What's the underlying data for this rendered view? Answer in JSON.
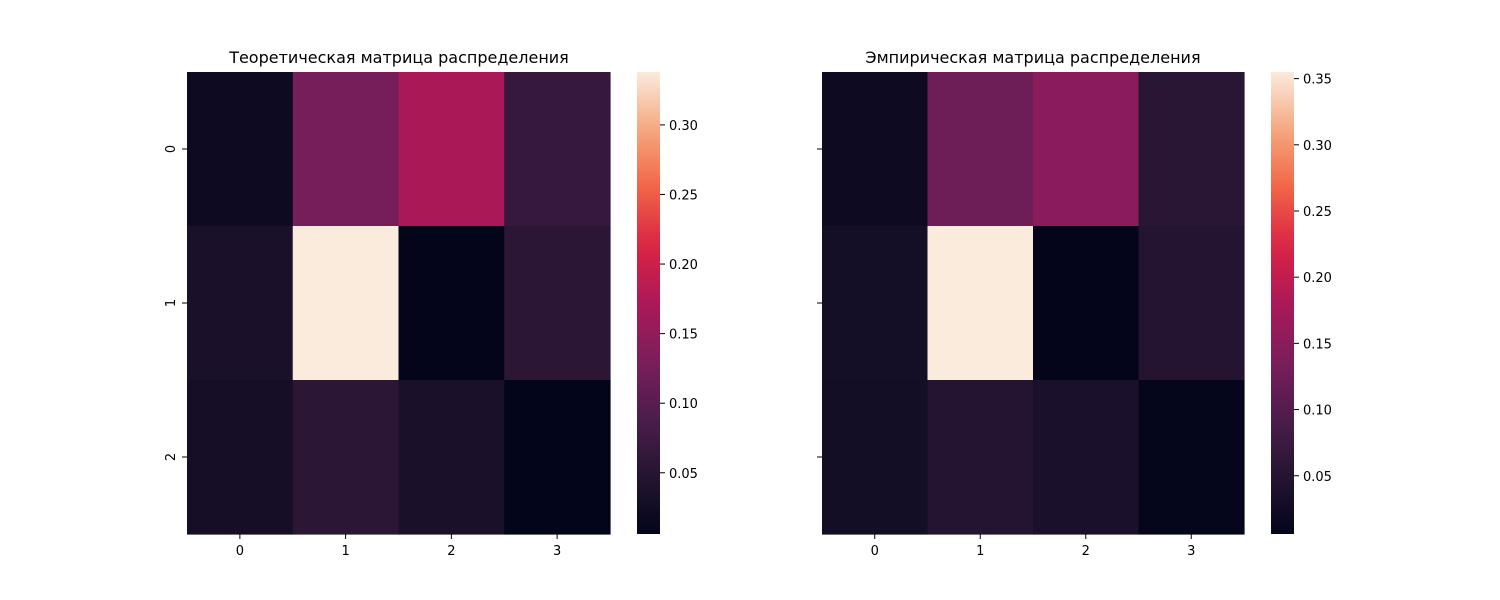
{
  "chart_data": [
    {
      "type": "heatmap",
      "title": "Теоретическая матрица распределения",
      "x_categories": [
        "0",
        "1",
        "2",
        "3"
      ],
      "y_categories": [
        "0",
        "1",
        "2"
      ],
      "values": [
        [
          0.02,
          0.125,
          0.17,
          0.065
        ],
        [
          0.035,
          0.338,
          0.007,
          0.055
        ],
        [
          0.03,
          0.055,
          0.035,
          0.006
        ]
      ],
      "colorbar": {
        "min": 0.006,
        "max": 0.338,
        "ticks": [
          0.05,
          0.1,
          0.15,
          0.2,
          0.25,
          0.3
        ]
      },
      "colormap": "rocket"
    },
    {
      "type": "heatmap",
      "title": "Эмпирическая матрица распределения",
      "x_categories": [
        "0",
        "1",
        "2",
        "3"
      ],
      "y_categories": [
        "0",
        "1",
        "2"
      ],
      "values": [
        [
          0.02,
          0.125,
          0.15,
          0.055
        ],
        [
          0.03,
          0.355,
          0.007,
          0.05
        ],
        [
          0.028,
          0.05,
          0.038,
          0.008
        ]
      ],
      "colorbar": {
        "min": 0.006,
        "max": 0.355,
        "ticks": [
          0.05,
          0.1,
          0.15,
          0.2,
          0.25,
          0.3,
          0.35
        ]
      },
      "colormap": "rocket"
    }
  ]
}
